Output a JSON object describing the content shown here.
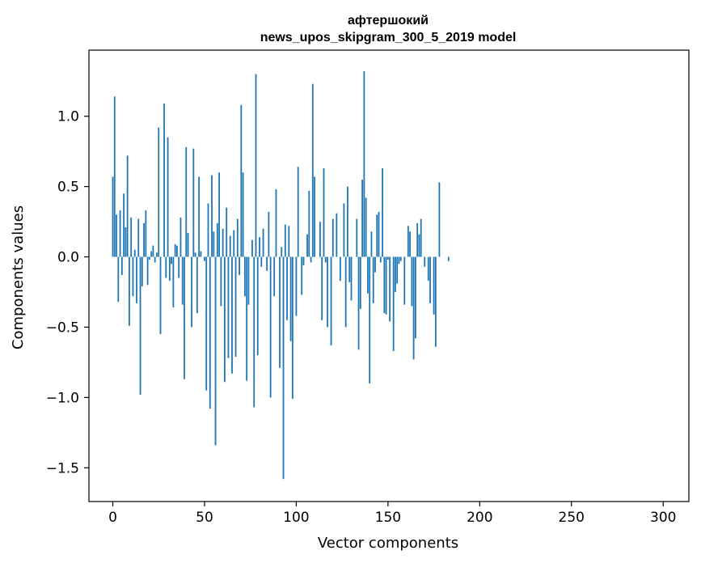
{
  "chart_data": {
    "type": "bar",
    "title": "афтершокий",
    "subtitle": "news_upos_skipgram_300_5_2019 model",
    "xlabel": "Vector components",
    "ylabel": "Components values",
    "xlim": [
      -13,
      314
    ],
    "ylim": [
      -1.74,
      1.47
    ],
    "xticks": [
      0,
      50,
      100,
      150,
      200,
      250,
      300
    ],
    "yticks": [
      -1.5,
      -1.0,
      -0.5,
      0.0,
      0.5,
      1.0
    ],
    "ytick_labels": [
      "−1.5",
      "−1.0",
      "−0.5",
      "0.0",
      "0.5",
      "1.0"
    ],
    "grid": false,
    "bar_color": "#1f77b4",
    "values": [
      0.57,
      1.14,
      0.3,
      -0.32,
      0.33,
      -0.13,
      0.45,
      0.21,
      0.72,
      -0.49,
      0.28,
      -0.28,
      0.05,
      -0.33,
      0.27,
      -0.98,
      -0.21,
      0.24,
      0.33,
      -0.2,
      -0.02,
      0.04,
      0.08,
      -0.04,
      0.03,
      0.92,
      -0.55,
      0.0,
      1.09,
      -0.15,
      0.85,
      -0.17,
      -0.05,
      -0.36,
      0.09,
      0.08,
      -0.15,
      0.28,
      -0.34,
      -0.87,
      0.78,
      0.17,
      0.0,
      -0.5,
      0.77,
      0.03,
      -0.4,
      0.57,
      0.04,
      0.0,
      -0.03,
      -0.95,
      0.38,
      -1.08,
      0.58,
      0.18,
      -1.34,
      0.24,
      0.6,
      -0.35,
      0.2,
      -0.89,
      0.35,
      -0.72,
      0.15,
      -0.83,
      0.19,
      -0.71,
      0.27,
      -0.13,
      1.08,
      0.6,
      -0.28,
      -0.88,
      -0.34,
      0.0,
      0.12,
      -1.07,
      1.3,
      -0.7,
      0.14,
      -0.07,
      0.2,
      0.0,
      -0.1,
      0.32,
      -1.0,
      0.0,
      -0.28,
      0.48,
      0.0,
      -0.79,
      0.07,
      -1.58,
      0.23,
      -0.45,
      0.22,
      -0.6,
      -1.01,
      0.0,
      -0.42,
      0.64,
      0.0,
      -0.27,
      -0.06,
      0.0,
      0.16,
      0.47,
      -0.04,
      1.23,
      0.57,
      0.0,
      0.0,
      0.25,
      -0.45,
      0.63,
      -0.04,
      -0.5,
      0.0,
      -0.63,
      0.27,
      0.0,
      0.31,
      0.0,
      -0.17,
      0.0,
      0.38,
      -0.5,
      0.5,
      -0.18,
      -0.31,
      0.0,
      0.0,
      0.27,
      -0.66,
      -0.37,
      0.55,
      1.32,
      0.42,
      -0.26,
      -0.9,
      0.18,
      -0.33,
      -0.11,
      0.3,
      0.32,
      -0.04,
      0.63,
      -0.4,
      -0.41,
      -0.02,
      -0.46,
      0.0,
      -0.67,
      -0.25,
      -0.19,
      -0.05,
      -0.03,
      0.0,
      -0.34,
      0.0,
      0.22,
      0.18,
      -0.35,
      -0.73,
      -0.58,
      0.24,
      0.16,
      0.27,
      0.0,
      -0.07,
      0.0,
      -0.17,
      -0.33,
      0.0,
      -0.41,
      -0.64,
      0.0,
      0.53,
      0.0,
      0.0,
      0.0,
      0.0,
      -0.03,
      0.0,
      0.0,
      0.0,
      0.0,
      0.0,
      0.0,
      0.0,
      0.0,
      0.0,
      0.0,
      0.0,
      0.0,
      0.0,
      0.0,
      0.0,
      0.0,
      0.0,
      0.0,
      0.0,
      0.0,
      0.0,
      0.0,
      0.0,
      0.0,
      0.0,
      0.0,
      0.0,
      0.0,
      0.0,
      0.0,
      0.0,
      0.0,
      0.0,
      0.0,
      0.0,
      0.0,
      0.0,
      0.0,
      0.0,
      0.0,
      0.0,
      0.0,
      0.0,
      0.0,
      0.0,
      0.0,
      0.0,
      0.0,
      0.0,
      0.0,
      0.0,
      0.0,
      0.0,
      0.0,
      0.0,
      0.0,
      0.0,
      0.0,
      0.0,
      0.0,
      0.0,
      0.0,
      0.0,
      0.0,
      0.0,
      0.0,
      0.0,
      0.0,
      0.0,
      0.0,
      0.0,
      0.0,
      0.0,
      0.0,
      0.0,
      0.0,
      0.0,
      0.0,
      0.0,
      0.0,
      0.0,
      0.0,
      0.0,
      0.0,
      0.0,
      0.0,
      0.0,
      0.0,
      0.0,
      0.0,
      0.0,
      0.0,
      0.0,
      0.0,
      0.0,
      0.0,
      0.0,
      0.0,
      0.0,
      0.0,
      0.0,
      0.0,
      0.0,
      0.0,
      0.0,
      0.0,
      0.0,
      0.0,
      0.0,
      0.0,
      0.0,
      0.0,
      0.0,
      0.0,
      0.0,
      0.0,
      0.0,
      0.0,
      0.0,
      0.0,
      0.0
    ]
  }
}
